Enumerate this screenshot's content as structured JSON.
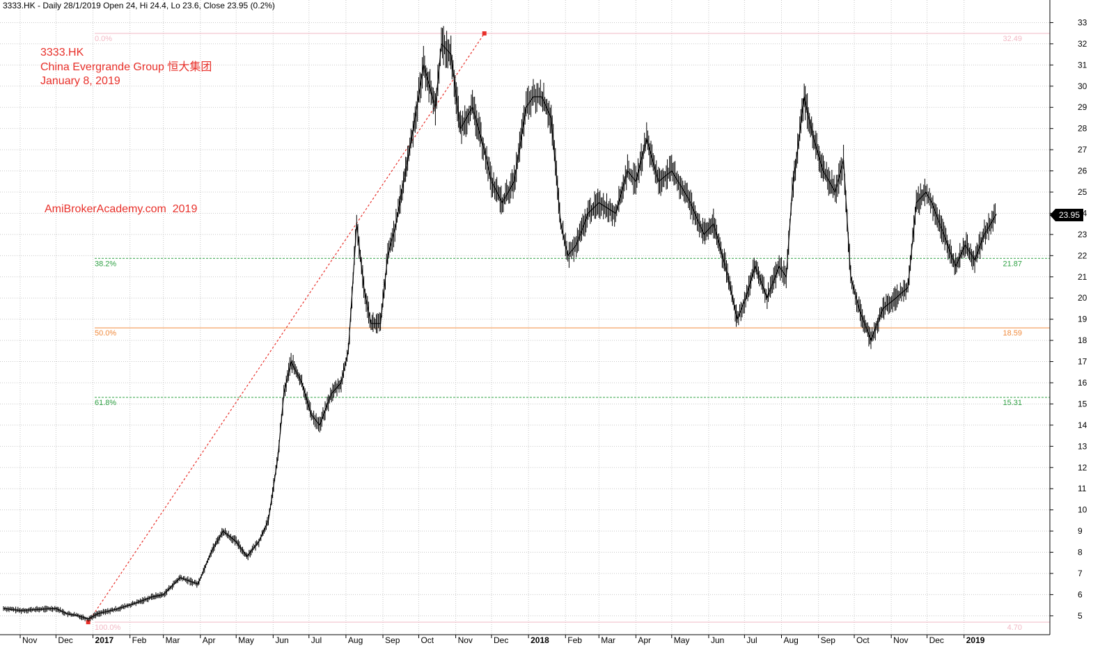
{
  "header": {
    "text": "3333.HK - Daily 28/1/2019 Open 24, Hi 24.4, Lo 23.6, Close 23.95 (0.2%)"
  },
  "annotation": {
    "symbol": "3333.HK",
    "company": "China Evergrande Group 恒大集团",
    "date": "January 8, 2019",
    "watermark": "AmiBrokerAcademy.com  2019"
  },
  "chart_data": {
    "type": "line",
    "ylim": [
      4.4,
      33.5
    ],
    "yticks": [
      5,
      6,
      7,
      8,
      9,
      10,
      11,
      12,
      13,
      14,
      15,
      16,
      17,
      18,
      19,
      20,
      21,
      22,
      23,
      24,
      25,
      26,
      27,
      28,
      29,
      30,
      31,
      32,
      33
    ],
    "grid": true,
    "last_close": "23.95",
    "x_months": [
      "Nov",
      "Dec",
      "2017",
      "Feb",
      "Mar",
      "Apr",
      "May",
      "Jun",
      "Jul",
      "Aug",
      "Sep",
      "Oct",
      "Nov",
      "Dec",
      "2018",
      "Feb",
      "Mar",
      "Apr",
      "May",
      "Jun",
      "Jul",
      "Aug",
      "Sep",
      "Oct",
      "Nov",
      "Dec",
      "2019"
    ],
    "series": [
      {
        "dates": [
          "2016-10-18",
          "2016-11-01",
          "2016-11-15",
          "2016-12-01",
          "2016-12-10",
          "2016-12-20",
          "2016-12-28",
          "2017-01-05",
          "2017-01-20",
          "2017-02-06",
          "2017-02-20",
          "2017-03-01",
          "2017-03-15",
          "2017-03-30",
          "2017-04-10",
          "2017-04-20",
          "2017-05-01",
          "2017-05-10",
          "2017-05-20",
          "2017-05-28",
          "2017-06-05",
          "2017-06-10",
          "2017-06-16",
          "2017-06-25",
          "2017-07-03",
          "2017-07-10",
          "2017-07-20",
          "2017-07-28",
          "2017-08-03",
          "2017-08-10",
          "2017-08-16",
          "2017-08-22",
          "2017-08-30",
          "2017-09-05",
          "2017-09-12",
          "2017-09-20",
          "2017-09-28",
          "2017-10-05",
          "2017-10-15",
          "2017-10-20",
          "2017-10-28",
          "2017-11-05",
          "2017-11-15",
          "2017-11-25",
          "2017-12-01",
          "2017-12-10",
          "2017-12-20",
          "2017-12-30",
          "2018-01-05",
          "2018-01-12",
          "2018-01-20",
          "2018-01-28",
          "2018-02-03",
          "2018-02-10",
          "2018-02-20",
          "2018-03-01",
          "2018-03-15",
          "2018-03-25",
          "2018-04-01",
          "2018-04-10",
          "2018-04-20",
          "2018-05-01",
          "2018-05-15",
          "2018-05-28",
          "2018-06-05",
          "2018-06-15",
          "2018-06-25",
          "2018-07-02",
          "2018-07-10",
          "2018-07-20",
          "2018-07-30",
          "2018-08-05",
          "2018-08-10",
          "2018-08-20",
          "2018-08-28",
          "2018-09-05",
          "2018-09-15",
          "2018-09-22",
          "2018-09-28",
          "2018-10-05",
          "2018-10-15",
          "2018-10-25",
          "2018-11-05",
          "2018-11-15",
          "2018-11-22",
          "2018-11-30",
          "2018-12-05",
          "2018-12-15",
          "2018-12-25",
          "2019-01-02",
          "2019-01-10",
          "2019-01-18",
          "2019-01-28"
        ],
        "values": [
          5.35,
          5.25,
          5.3,
          5.35,
          5.1,
          5.0,
          4.85,
          5.1,
          5.3,
          5.6,
          5.9,
          6.0,
          6.8,
          6.5,
          8.0,
          9.0,
          8.5,
          7.8,
          8.5,
          9.5,
          12.5,
          15.5,
          17.0,
          16.0,
          14.5,
          14.0,
          15.5,
          16.0,
          17.5,
          23.5,
          20.5,
          18.8,
          18.8,
          22.0,
          23.5,
          26.0,
          28.5,
          31.0,
          29.0,
          32.0,
          31.5,
          28.0,
          29.0,
          27.0,
          25.5,
          24.5,
          25.5,
          29.0,
          29.5,
          29.5,
          28.5,
          23.5,
          22.0,
          22.5,
          24.0,
          24.5,
          24.0,
          26.0,
          25.5,
          27.5,
          25.5,
          26.0,
          24.7,
          23.0,
          23.5,
          21.5,
          19.0,
          20.0,
          21.5,
          20.0,
          21.5,
          21.0,
          25.0,
          29.5,
          27.5,
          26.0,
          25.0,
          26.5,
          21.0,
          19.5,
          18.0,
          19.5,
          20.0,
          20.5,
          24.5,
          25.0,
          24.5,
          23.0,
          21.5,
          22.5,
          21.8,
          23.0,
          23.95
        ]
      }
    ],
    "fib_lines": [
      {
        "pct": "0.0%",
        "value": "32.49",
        "y": 32.49,
        "color": "#f2b8c4",
        "dashed": false
      },
      {
        "pct": "38.2%",
        "value": "21.87",
        "y": 21.87,
        "color": "#2ea043",
        "dashed": true
      },
      {
        "pct": "50.0%",
        "value": "18.59",
        "y": 18.59,
        "color": "#f08a3c",
        "dashed": false
      },
      {
        "pct": "61.8%",
        "value": "15.31",
        "y": 15.31,
        "color": "#2ea043",
        "dashed": true
      },
      {
        "pct": "100.0%",
        "value": "4.70",
        "y": 4.7,
        "color": "#f2b8c4",
        "dashed": false
      }
    ],
    "trendline": {
      "from": {
        "date": "2016-12-28",
        "value": 4.7
      },
      "to": {
        "date": "2017-11-25",
        "value": 32.49
      },
      "color": "#e8302a"
    },
    "colors": {
      "price": "#000000",
      "grid": "#c8c8c8"
    }
  }
}
